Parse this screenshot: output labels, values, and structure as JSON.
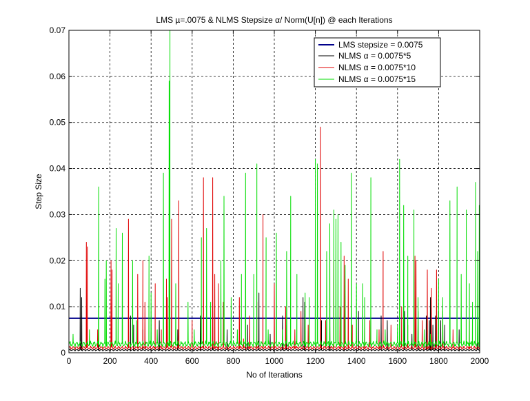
{
  "chart_data": {
    "type": "line",
    "title": "LMS µ=.0075 & NLMS Stepsize α/ Norm(U[n]) @ each Iterations",
    "xlabel": "No of Iterations",
    "ylabel": "Step Size",
    "xlim": [
      0,
      2000
    ],
    "ylim": [
      0,
      0.07
    ],
    "x_ticks": [
      0,
      200,
      400,
      600,
      800,
      1000,
      1200,
      1400,
      1600,
      1800,
      2000
    ],
    "y_ticks": [
      0,
      0.01,
      0.02,
      0.03,
      0.04,
      0.05,
      0.06,
      0.07
    ],
    "x_tick_labels": [
      "0",
      "200",
      "400",
      "600",
      "800",
      "1000",
      "1200",
      "1400",
      "1600",
      "1800",
      "2000"
    ],
    "y_tick_labels": [
      "0",
      "0.01",
      "0.02",
      "0.03",
      "0.04",
      "0.05",
      "0.06",
      "0.07"
    ],
    "grid": true,
    "legend_position": "top-right",
    "series": [
      {
        "name": "LMS stepsize = 0.0075",
        "color": "#00008b",
        "constant": 0.0075
      },
      {
        "name": "NLMS α = 0.0075*5",
        "color": "#000000",
        "baseline": 0.0006,
        "spikes": [
          [
            55,
            0.014
          ],
          [
            62,
            0.012
          ],
          [
            145,
            0.005
          ],
          [
            300,
            0.008
          ],
          [
            315,
            0.006
          ],
          [
            360,
            0.005
          ],
          [
            440,
            0.007
          ],
          [
            530,
            0.005
          ],
          [
            640,
            0.008
          ],
          [
            700,
            0.009
          ],
          [
            770,
            0.005
          ],
          [
            860,
            0.009
          ],
          [
            870,
            0.006
          ],
          [
            925,
            0.013
          ],
          [
            980,
            0.004
          ],
          [
            1040,
            0.008
          ],
          [
            1060,
            0.006
          ],
          [
            1140,
            0.012
          ],
          [
            1148,
            0.011
          ],
          [
            1230,
            0.007
          ],
          [
            1270,
            0.006
          ],
          [
            1340,
            0.008
          ],
          [
            1410,
            0.009
          ],
          [
            1520,
            0.008
          ],
          [
            1550,
            0.007
          ],
          [
            1635,
            0.009
          ],
          [
            1670,
            0.004
          ],
          [
            1700,
            0.009
          ],
          [
            1740,
            0.008
          ],
          [
            1755,
            0.007
          ],
          [
            1760,
            0.012
          ],
          [
            1772,
            0.006
          ],
          [
            1785,
            0.008
          ],
          [
            1800,
            0.009
          ],
          [
            1810,
            0.007
          ],
          [
            1830,
            0.006
          ],
          [
            1900,
            0.005
          ],
          [
            1990,
            0.007
          ]
        ]
      },
      {
        "name": "NLMS α = 0.0075*10",
        "color": "#e00000",
        "baseline": 0.0011,
        "spikes": [
          [
            85,
            0.024
          ],
          [
            90,
            0.023
          ],
          [
            140,
            0.005
          ],
          [
            205,
            0.02
          ],
          [
            210,
            0.018
          ],
          [
            290,
            0.029
          ],
          [
            335,
            0.017
          ],
          [
            360,
            0.02
          ],
          [
            370,
            0.011
          ],
          [
            420,
            0.015
          ],
          [
            450,
            0.005
          ],
          [
            475,
            0.016
          ],
          [
            480,
            0.012
          ],
          [
            500,
            0.029
          ],
          [
            535,
            0.033
          ],
          [
            600,
            0.007
          ],
          [
            655,
            0.038
          ],
          [
            700,
            0.038
          ],
          [
            710,
            0.017
          ],
          [
            728,
            0.015
          ],
          [
            752,
            0.011
          ],
          [
            830,
            0.012
          ],
          [
            850,
            0.003
          ],
          [
            880,
            0.008
          ],
          [
            915,
            0.011
          ],
          [
            945,
            0.03
          ],
          [
            1000,
            0.015
          ],
          [
            1055,
            0.01
          ],
          [
            1100,
            0.005
          ],
          [
            1130,
            0.009
          ],
          [
            1165,
            0.006
          ],
          [
            1225,
            0.049
          ],
          [
            1250,
            0.007
          ],
          [
            1290,
            0.02
          ],
          [
            1320,
            0.01
          ],
          [
            1340,
            0.021
          ],
          [
            1360,
            0.016
          ],
          [
            1380,
            0.006
          ],
          [
            1440,
            0.008
          ],
          [
            1465,
            0.007
          ],
          [
            1510,
            0.005
          ],
          [
            1530,
            0.022
          ],
          [
            1568,
            0.006
          ],
          [
            1620,
            0.01
          ],
          [
            1650,
            0.006
          ],
          [
            1685,
            0.021
          ],
          [
            1690,
            0.02
          ],
          [
            1720,
            0.007
          ],
          [
            1745,
            0.018
          ],
          [
            1765,
            0.014
          ],
          [
            1790,
            0.018
          ],
          [
            1820,
            0.009
          ],
          [
            1870,
            0.005
          ],
          [
            1950,
            0.007
          ]
        ]
      },
      {
        "name": "NLMS α = 0.0075*15",
        "color": "#00dd00",
        "baseline": 0.0019,
        "spikes": [
          [
            20,
            0.004
          ],
          [
            100,
            0.005
          ],
          [
            145,
            0.036
          ],
          [
            175,
            0.016
          ],
          [
            182,
            0.02
          ],
          [
            230,
            0.027
          ],
          [
            240,
            0.015
          ],
          [
            260,
            0.026
          ],
          [
            310,
            0.02
          ],
          [
            330,
            0.007
          ],
          [
            390,
            0.021
          ],
          [
            400,
            0.013
          ],
          [
            430,
            0.005
          ],
          [
            460,
            0.039
          ],
          [
            488,
            0.059
          ],
          [
            492,
            0.07
          ],
          [
            520,
            0.015
          ],
          [
            580,
            0.011
          ],
          [
            610,
            0.005
          ],
          [
            645,
            0.025
          ],
          [
            670,
            0.027
          ],
          [
            690,
            0.011
          ],
          [
            740,
            0.02
          ],
          [
            755,
            0.034
          ],
          [
            790,
            0.012
          ],
          [
            820,
            0.005
          ],
          [
            840,
            0.017
          ],
          [
            860,
            0.039
          ],
          [
            900,
            0.017
          ],
          [
            915,
            0.041
          ],
          [
            960,
            0.025
          ],
          [
            970,
            0.005
          ],
          [
            1010,
            0.026
          ],
          [
            1040,
            0.005
          ],
          [
            1060,
            0.022
          ],
          [
            1080,
            0.034
          ],
          [
            1110,
            0.017
          ],
          [
            1150,
            0.013
          ],
          [
            1170,
            0.012
          ],
          [
            1200,
            0.042
          ],
          [
            1210,
            0.041
          ],
          [
            1255,
            0.022
          ],
          [
            1270,
            0.028
          ],
          [
            1290,
            0.031
          ],
          [
            1300,
            0.029
          ],
          [
            1310,
            0.03
          ],
          [
            1325,
            0.024
          ],
          [
            1345,
            0.019
          ],
          [
            1375,
            0.039
          ],
          [
            1400,
            0.015
          ],
          [
            1430,
            0.015
          ],
          [
            1440,
            0.012
          ],
          [
            1470,
            0.038
          ],
          [
            1500,
            0.005
          ],
          [
            1540,
            0.005
          ],
          [
            1600,
            0.006
          ],
          [
            1610,
            0.042
          ],
          [
            1630,
            0.032
          ],
          [
            1650,
            0.021
          ],
          [
            1680,
            0.031
          ],
          [
            1700,
            0.012
          ],
          [
            1730,
            0.005
          ],
          [
            1760,
            0.004
          ],
          [
            1800,
            0.016
          ],
          [
            1820,
            0.012
          ],
          [
            1855,
            0.033
          ],
          [
            1890,
            0.036
          ],
          [
            1910,
            0.017
          ],
          [
            1935,
            0.031
          ],
          [
            1950,
            0.015
          ],
          [
            1965,
            0.011
          ],
          [
            1980,
            0.037
          ],
          [
            1990,
            0.022
          ],
          [
            1998,
            0.032
          ]
        ]
      }
    ]
  }
}
